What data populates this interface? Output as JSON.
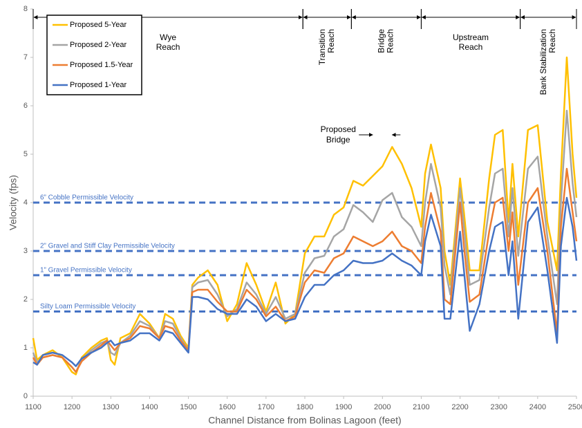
{
  "chart_data": {
    "type": "line",
    "y_label": "Velocity (fps)",
    "x_label": "Channel Distance from Bolinas Lagoon (feet)",
    "xlim": [
      1100,
      2500
    ],
    "xticks": [
      1100,
      1200,
      1300,
      1400,
      1500,
      1600,
      1700,
      1800,
      1900,
      2000,
      2100,
      2200,
      2300,
      2400,
      2500
    ],
    "ylim": [
      0,
      8
    ],
    "yticks": [
      0,
      1,
      2,
      3,
      4,
      5,
      6,
      7,
      8
    ],
    "grid": false,
    "legend": "upper-left",
    "x": [
      1100,
      1110,
      1125,
      1150,
      1175,
      1200,
      1210,
      1225,
      1250,
      1275,
      1290,
      1300,
      1310,
      1325,
      1350,
      1375,
      1400,
      1425,
      1440,
      1460,
      1480,
      1500,
      1510,
      1525,
      1550,
      1575,
      1600,
      1625,
      1650,
      1675,
      1700,
      1725,
      1750,
      1775,
      1800,
      1825,
      1850,
      1875,
      1900,
      1925,
      1950,
      1975,
      2000,
      2025,
      2050,
      2075,
      2100,
      2110,
      2125,
      2150,
      2160,
      2175,
      2200,
      2210,
      2225,
      2250,
      2275,
      2290,
      2310,
      2325,
      2335,
      2350,
      2375,
      2400,
      2425,
      2450,
      2460,
      2475,
      2490,
      2500
    ],
    "series": [
      {
        "name": "Proposed 5-Year",
        "color": "#ffc000",
        "values": [
          1.2,
          0.75,
          0.85,
          0.95,
          0.8,
          0.5,
          0.45,
          0.8,
          1.0,
          1.15,
          1.2,
          0.75,
          0.65,
          1.2,
          1.3,
          1.7,
          1.5,
          1.2,
          1.7,
          1.6,
          1.25,
          1.0,
          2.3,
          2.45,
          2.6,
          2.3,
          1.55,
          1.9,
          2.75,
          2.3,
          1.75,
          2.35,
          1.5,
          1.7,
          2.95,
          3.3,
          3.3,
          3.75,
          3.9,
          4.45,
          4.35,
          4.55,
          4.75,
          5.15,
          4.8,
          4.3,
          3.5,
          4.6,
          5.2,
          4.3,
          3.0,
          2.3,
          4.5,
          3.8,
          2.6,
          2.6,
          4.5,
          5.4,
          5.5,
          3.6,
          4.8,
          3.3,
          5.5,
          5.6,
          3.6,
          2.6,
          4.6,
          7.0,
          5.0,
          4.1
        ]
      },
      {
        "name": "Proposed 2-Year",
        "color": "#a5a5a5",
        "values": [
          0.9,
          0.7,
          0.8,
          0.85,
          0.8,
          0.6,
          0.5,
          0.75,
          0.95,
          1.1,
          1.15,
          0.9,
          0.85,
          1.1,
          1.25,
          1.55,
          1.45,
          1.2,
          1.55,
          1.5,
          1.2,
          0.95,
          2.25,
          2.35,
          2.4,
          2.1,
          1.65,
          1.8,
          2.35,
          2.1,
          1.7,
          2.05,
          1.6,
          1.7,
          2.55,
          2.85,
          2.9,
          3.3,
          3.45,
          3.95,
          3.8,
          3.6,
          4.05,
          4.2,
          3.7,
          3.5,
          3.1,
          4.0,
          4.8,
          3.9,
          2.7,
          2.1,
          4.3,
          3.5,
          2.3,
          2.4,
          3.9,
          4.6,
          4.7,
          3.3,
          4.3,
          2.9,
          4.7,
          4.95,
          3.3,
          1.9,
          4.0,
          5.9,
          4.4,
          3.7
        ]
      },
      {
        "name": "Proposed 1.5-Year",
        "color": "#ed7d31",
        "values": [
          0.8,
          0.65,
          0.8,
          0.85,
          0.8,
          0.6,
          0.5,
          0.72,
          0.9,
          1.05,
          1.15,
          1.05,
          0.95,
          1.1,
          1.2,
          1.45,
          1.4,
          1.2,
          1.45,
          1.4,
          1.15,
          0.95,
          2.15,
          2.2,
          2.2,
          1.95,
          1.75,
          1.75,
          2.2,
          2.0,
          1.65,
          1.85,
          1.55,
          1.65,
          2.35,
          2.6,
          2.55,
          2.85,
          2.95,
          3.3,
          3.2,
          3.1,
          3.2,
          3.4,
          3.1,
          3.0,
          2.75,
          3.5,
          4.2,
          3.4,
          2.0,
          1.9,
          4.0,
          3.1,
          1.95,
          2.1,
          3.4,
          4.0,
          4.1,
          3.0,
          3.8,
          2.3,
          4.0,
          4.3,
          3.0,
          1.3,
          3.5,
          4.7,
          3.8,
          3.2
        ]
      },
      {
        "name": "Proposed 1-Year",
        "color": "#4472c4",
        "values": [
          0.7,
          0.65,
          0.85,
          0.9,
          0.85,
          0.7,
          0.62,
          0.78,
          0.9,
          1.0,
          1.1,
          1.15,
          1.05,
          1.1,
          1.15,
          1.3,
          1.3,
          1.15,
          1.35,
          1.3,
          1.1,
          0.9,
          2.05,
          2.05,
          2.0,
          1.8,
          1.7,
          1.7,
          2.0,
          1.85,
          1.55,
          1.7,
          1.55,
          1.6,
          2.05,
          2.3,
          2.3,
          2.5,
          2.6,
          2.8,
          2.75,
          2.75,
          2.8,
          2.95,
          2.8,
          2.7,
          2.5,
          3.2,
          3.75,
          3.1,
          1.6,
          1.6,
          3.4,
          2.6,
          1.35,
          1.9,
          3.0,
          3.5,
          3.6,
          2.5,
          3.2,
          1.6,
          3.6,
          3.9,
          2.6,
          1.1,
          3.1,
          4.1,
          3.5,
          2.8
        ]
      }
    ],
    "reference_lines": [
      {
        "label": "6” Cobble Permissible Velocity",
        "value": 4,
        "color": "#4472c4"
      },
      {
        "label": "2” Gravel and Stiff Clay Permissible Velocity",
        "value": 3,
        "color": "#4472c4"
      },
      {
        "label": "1” Gravel Permissible Velocity",
        "value": 2.5,
        "color": "#4472c4"
      },
      {
        "label": "Silty Loam Permissible Velocity",
        "value": 1.75,
        "color": "#4472c4"
      }
    ],
    "reaches": [
      {
        "lines": [
          "Wye",
          "Reach"
        ],
        "start": 1100,
        "end": 1795,
        "rotated": false
      },
      {
        "lines": [
          "Transition",
          "Reach"
        ],
        "start": 1795,
        "end": 1920,
        "rotated": true
      },
      {
        "lines": [
          "Bridge",
          "Reach"
        ],
        "start": 1920,
        "end": 2100,
        "rotated": true
      },
      {
        "lines": [
          "Upstream",
          "Reach"
        ],
        "start": 2100,
        "end": 2355,
        "rotated": false
      },
      {
        "lines": [
          "Bank Stabilization",
          "Reach"
        ],
        "start": 2355,
        "end": 2500,
        "rotated": true
      }
    ],
    "bridge_annotation": {
      "lines": [
        "Proposed",
        "Bridge"
      ],
      "start": 1975,
      "end": 2025,
      "y": 5.4
    }
  }
}
